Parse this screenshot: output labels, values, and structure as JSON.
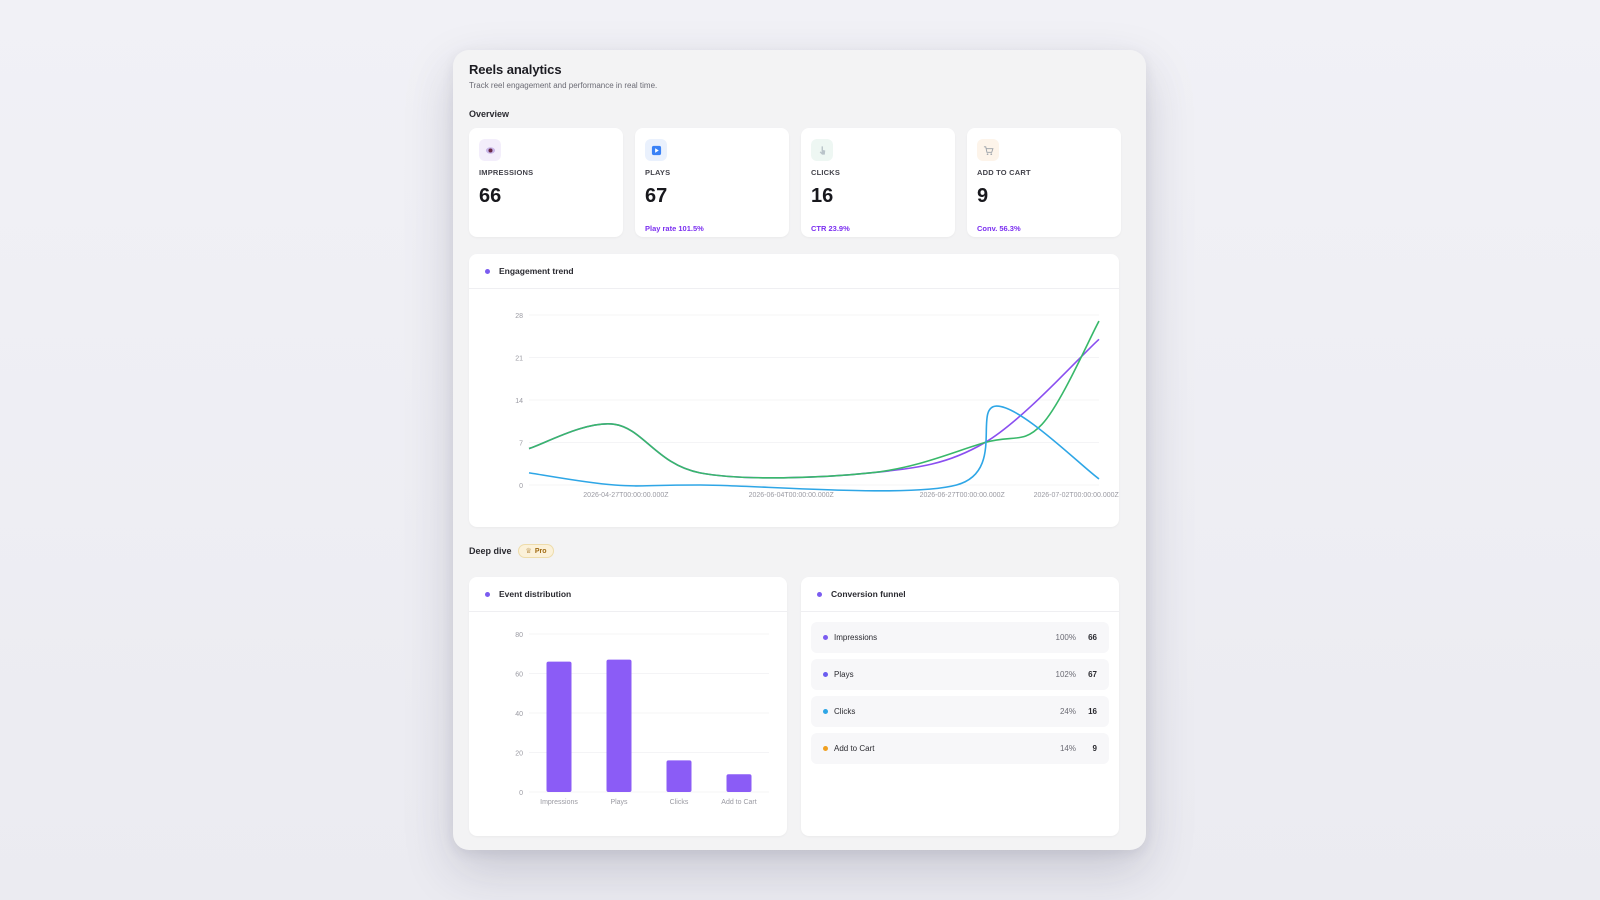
{
  "header": {
    "title": "Reels analytics",
    "subtitle": "Track reel engagement and performance in real time."
  },
  "overview": {
    "label": "Overview",
    "cards": [
      {
        "icon": "eye-icon",
        "label": "IMPRESSIONS",
        "value": "66",
        "sub": ""
      },
      {
        "icon": "play-icon",
        "label": "PLAYS",
        "value": "67",
        "sub": "Play rate 101.5%"
      },
      {
        "icon": "pointer-icon",
        "label": "CLICKS",
        "value": "16",
        "sub": "CTR 23.9%"
      },
      {
        "icon": "cart-icon",
        "label": "ADD TO CART",
        "value": "9",
        "sub": "Conv. 56.3%"
      }
    ]
  },
  "trend": {
    "title": "Engagement trend"
  },
  "deep_dive": {
    "label": "Deep dive",
    "badge": "Pro"
  },
  "distribution": {
    "title": "Event distribution"
  },
  "funnel": {
    "title": "Conversion funnel",
    "rows": [
      {
        "name": "Impressions",
        "pct": "100%",
        "count": "66",
        "color": "#7b5cf0"
      },
      {
        "name": "Plays",
        "pct": "102%",
        "count": "67",
        "color": "#6a5cf0"
      },
      {
        "name": "Clicks",
        "pct": "24%",
        "count": "16",
        "color": "#2ea6e6"
      },
      {
        "name": "Add to Cart",
        "pct": "14%",
        "count": "9",
        "color": "#f0a020"
      }
    ]
  },
  "chart_data": [
    {
      "type": "line",
      "title": "Engagement trend",
      "x": [
        "2026-04-27T00:00:00.000Z",
        "2026-06-04T00:00:00.000Z",
        "2026-06-27T00:00:00.000Z",
        "2026-07-02T00:00:00.000Z"
      ],
      "yticks": [
        0,
        7,
        14,
        21,
        28
      ],
      "ylim": [
        0,
        28
      ],
      "grid": true,
      "series": [
        {
          "color": "#8a4ff0",
          "points": [
            [
              0.0,
              6
            ],
            [
              0.15,
              10
            ],
            [
              0.3,
              2
            ],
            [
              0.6,
              2
            ],
            [
              0.8,
              7
            ],
            [
              1.0,
              24
            ]
          ]
        },
        {
          "color": "#38b86a",
          "points": [
            [
              0.0,
              6
            ],
            [
              0.15,
              10
            ],
            [
              0.3,
              2
            ],
            [
              0.6,
              2
            ],
            [
              0.8,
              7
            ],
            [
              0.9,
              10
            ],
            [
              1.0,
              27
            ]
          ]
        },
        {
          "color": "#2ea6e6",
          "points": [
            [
              0.0,
              2
            ],
            [
              0.15,
              0
            ],
            [
              0.3,
              0
            ],
            [
              0.75,
              0
            ],
            [
              0.82,
              13
            ],
            [
              1.0,
              1
            ]
          ]
        }
      ]
    },
    {
      "type": "bar",
      "title": "Event distribution",
      "categories": [
        "Impressions",
        "Plays",
        "Clicks",
        "Add to Cart"
      ],
      "values": [
        66,
        67,
        16,
        9
      ],
      "yticks": [
        0,
        20,
        40,
        60,
        80
      ],
      "ylim": [
        0,
        80
      ],
      "color": "#8b5cf6"
    }
  ]
}
